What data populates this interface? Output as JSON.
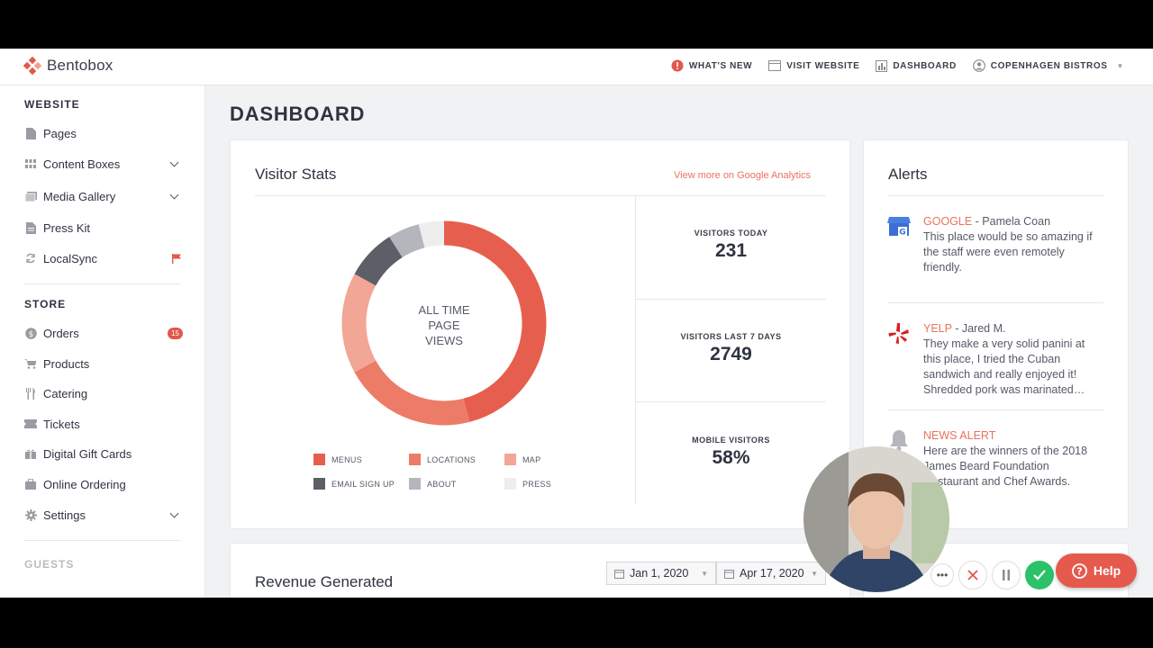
{
  "brand": {
    "name": "Bentobox"
  },
  "topnav": {
    "whats_new": "WHAT'S NEW",
    "visit_website": "VISIT WEBSITE",
    "dashboard": "DASHBOARD",
    "account": "COPENHAGEN BISTROS"
  },
  "sidebar": {
    "website_heading": "WEBSITE",
    "website_items": [
      {
        "label": "Pages",
        "icon": "page-icon"
      },
      {
        "label": "Content Boxes",
        "icon": "grid-icon"
      },
      {
        "label": "Media Gallery",
        "icon": "gallery-icon"
      },
      {
        "label": "Press Kit",
        "icon": "document-icon"
      },
      {
        "label": "LocalSync",
        "icon": "sync-icon"
      }
    ],
    "store_heading": "STORE",
    "store_items": [
      {
        "label": "Orders",
        "icon": "dollar-icon",
        "badge": "15"
      },
      {
        "label": "Products",
        "icon": "cart-icon"
      },
      {
        "label": "Catering",
        "icon": "utensils-icon"
      },
      {
        "label": "Tickets",
        "icon": "ticket-icon"
      },
      {
        "label": "Digital Gift Cards",
        "icon": "gift-card-icon"
      },
      {
        "label": "Online Ordering",
        "icon": "bag-icon"
      },
      {
        "label": "Settings",
        "icon": "gear-icon"
      }
    ],
    "guests_heading": "GUESTS"
  },
  "main": {
    "title": "DASHBOARD",
    "visitor_stats": {
      "title": "Visitor Stats",
      "link": "View more on Google Analytics",
      "donut_label": [
        "ALL TIME",
        "PAGE",
        "VIEWS"
      ],
      "stats": [
        {
          "label": "VISITORS TODAY",
          "value": "231"
        },
        {
          "label": "VISITORS LAST 7 DAYS",
          "value": "2749"
        },
        {
          "label": "MOBILE VISITORS",
          "value": "58%"
        }
      ],
      "legend": [
        {
          "label": "MENUS",
          "color": "#e65f4e"
        },
        {
          "label": "LOCATIONS",
          "color": "#ec7b68"
        },
        {
          "label": "MAP",
          "color": "#f2a696"
        },
        {
          "label": "EMAIL SIGN UP",
          "color": "#5d5f66"
        },
        {
          "label": "ABOUT",
          "color": "#b4b6bb"
        },
        {
          "label": "PRESS",
          "color": "#eeeeef"
        }
      ]
    },
    "alerts": {
      "title": "Alerts",
      "items": [
        {
          "source": "GOOGLE",
          "author": " - Pamela Coan",
          "text": "This place would be so amazing if the staff were even remotely friendly.",
          "icon": "google-my-business-icon"
        },
        {
          "source": "YELP",
          "author": " - Jared M.",
          "text": "They make a very solid panini at this place, I tried the Cuban sandwich and really enjoyed it! Shredded pork was marinated…",
          "icon": "yelp-icon"
        },
        {
          "source": "NEWS ALERT",
          "author": "",
          "text": "Here are the winners of the 2018 James Beard Foundation Restaurant and Chef Awards.",
          "icon": "bell-icon"
        }
      ]
    },
    "revenue": {
      "title": "Revenue Generated",
      "start_date": "Jan 1, 2020",
      "end_date": "Apr 17, 2020"
    }
  },
  "overlay": {
    "help_label": "Help"
  },
  "chart_data": {
    "type": "pie",
    "title": "",
    "categories": [
      "MENUS",
      "LOCATIONS",
      "MAP",
      "EMAIL SIGN UP",
      "ABOUT",
      "PRESS"
    ],
    "values": [
      46,
      21,
      16,
      8,
      5,
      4
    ]
  }
}
